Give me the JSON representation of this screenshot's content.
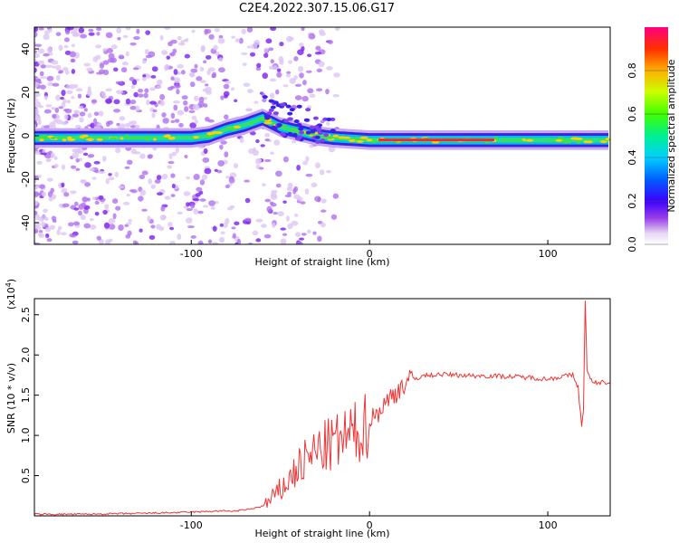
{
  "title": "C2E4.2022.307.15.06.G17",
  "chart_data": [
    {
      "type": "heatmap",
      "xlabel": "Height of straight line (km)",
      "ylabel": "Frequency (Hz)",
      "xlim": [
        -188,
        135
      ],
      "ylim": [
        -50,
        50
      ],
      "xticks": [
        "-100",
        "0",
        "100"
      ],
      "yticks": [
        "-40",
        "-20",
        "0",
        "20",
        "40"
      ],
      "colorbar": {
        "label": "Normalized spectral amplitude",
        "range": [
          0,
          1
        ],
        "ticks": [
          "0.0",
          "0.2",
          "0.4",
          "0.6",
          "0.8"
        ]
      },
      "ridge": [
        {
          "x": -188,
          "f": -1
        },
        {
          "x": -150,
          "f": -1
        },
        {
          "x": -120,
          "f": -1
        },
        {
          "x": -100,
          "f": -1
        },
        {
          "x": -90,
          "f": 0
        },
        {
          "x": -80,
          "f": 3
        },
        {
          "x": -70,
          "f": 5
        },
        {
          "x": -60,
          "f": 8
        },
        {
          "x": -50,
          "f": 4
        },
        {
          "x": -40,
          "f": 2
        },
        {
          "x": -30,
          "f": 0
        },
        {
          "x": -20,
          "f": -1
        },
        {
          "x": 0,
          "f": -2
        },
        {
          "x": 50,
          "f": -2
        },
        {
          "x": 100,
          "f": -2
        },
        {
          "x": 135,
          "f": -2
        }
      ]
    },
    {
      "type": "line",
      "xlabel": "Height of straight line (km)",
      "ylabel": "SNR (10 * v/v)",
      "multiplier": "(x10^4)",
      "xlim": [
        -188,
        135
      ],
      "ylim": [
        0,
        2.7
      ],
      "xticks": [
        "-100",
        "0",
        "100"
      ],
      "yticks": [
        "0.5",
        "1.0",
        "1.5",
        "2.0",
        "2.5"
      ],
      "series": [
        {
          "color": "#ee3333",
          "x": [
            -188,
            -160,
            -130,
            -110,
            -95,
            -85,
            -75,
            -68,
            -60,
            -55,
            -50,
            -45,
            -40,
            -35,
            -30,
            -25,
            -20,
            -15,
            -10,
            -5,
            0,
            5,
            10,
            15,
            20,
            25,
            30,
            40,
            50,
            60,
            70,
            80,
            90,
            100,
            105,
            110,
            114,
            117,
            119,
            120,
            121,
            122,
            125,
            130,
            135
          ],
          "y": [
            0.02,
            0.02,
            0.03,
            0.04,
            0.05,
            0.06,
            0.06,
            0.08,
            0.12,
            0.2,
            0.32,
            0.45,
            0.6,
            0.7,
            0.8,
            0.85,
            0.9,
            0.95,
            1.0,
            1.05,
            1.18,
            1.3,
            1.42,
            1.55,
            1.65,
            1.7,
            1.74,
            1.76,
            1.75,
            1.74,
            1.74,
            1.73,
            1.72,
            1.7,
            1.72,
            1.74,
            1.75,
            1.6,
            1.1,
            1.3,
            2.7,
            1.8,
            1.65,
            1.66,
            1.66
          ]
        }
      ]
    }
  ]
}
